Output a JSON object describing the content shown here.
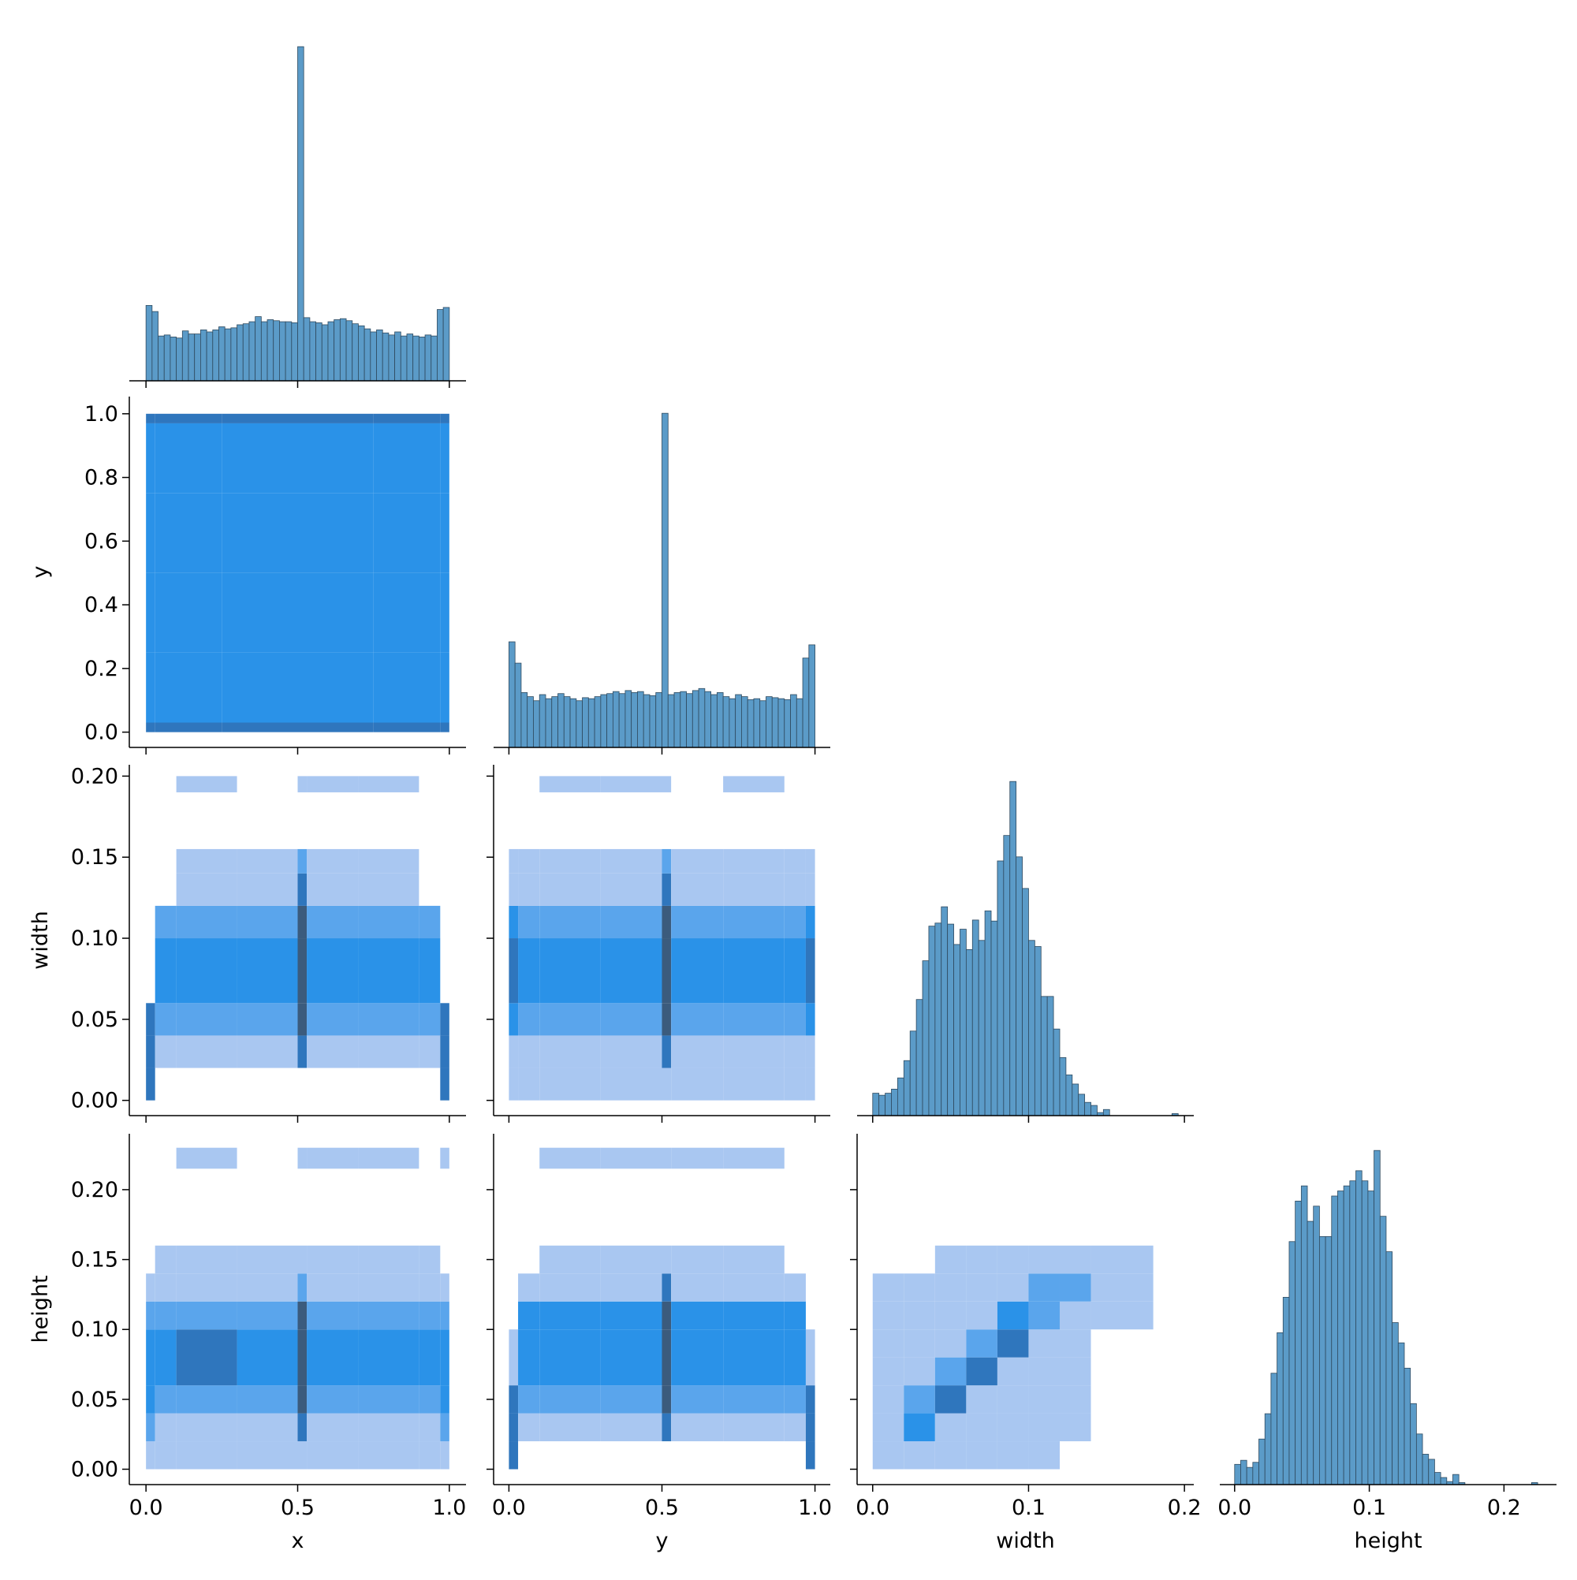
{
  "chart_data": {
    "type": "pairplot",
    "hist_color": "#5b9bc8",
    "edge_color": "#2f4a5f",
    "colors": [
      "none",
      "#a9c7f1",
      "#5aa5ec",
      "#2a92e8",
      "#2f76bd",
      "#3b5b7d"
    ],
    "variables": [
      {
        "name": "x",
        "xlim": [
          -0.055,
          1.055
        ],
        "xticks": [
          {
            "value": 0,
            "label": "0.0"
          },
          0.5,
          {
            "value": 1,
            "label": "1.0"
          }
        ]
      },
      {
        "name": "y",
        "xlim": [
          -0.05,
          1.05
        ],
        "xticks": [
          {
            "value": 0,
            "label": "0.0"
          },
          0.5,
          {
            "value": 1,
            "label": "1.0"
          }
        ],
        "ylim": [
          -0.048,
          1.054
        ],
        "yticks": [
          {
            "value": 0,
            "label": "0.0"
          },
          0.2,
          0.4,
          0.6,
          0.8,
          {
            "value": 1,
            "label": "1.0"
          }
        ]
      },
      {
        "name": "width",
        "xlim": [
          -0.01,
          0.206
        ],
        "xticks": [
          {
            "value": 0,
            "label": "0.0"
          },
          0.1,
          0.2
        ],
        "ylim": [
          -0.0094,
          0.207
        ],
        "yticks": [
          {
            "value": 0,
            "label": "0.00"
          },
          0.05,
          {
            "value": 0.1,
            "label": "0.10"
          },
          0.15,
          {
            "value": 0.2,
            "label": "0.20"
          }
        ]
      },
      {
        "name": "height",
        "xlim": [
          -0.011,
          0.239
        ],
        "xticks": [
          {
            "value": 0,
            "label": "0.0"
          },
          0.1,
          0.2
        ],
        "ylim": [
          -0.011,
          0.24
        ],
        "yticks": [
          {
            "value": 0,
            "label": "0.00"
          },
          0.05,
          {
            "value": 0.1,
            "label": "0.10"
          },
          0.15,
          {
            "value": 0.2,
            "label": "0.20"
          }
        ]
      }
    ],
    "diagonal": [
      {
        "bins": [
          0,
          0.02,
          0.04,
          0.06,
          0.08,
          0.1,
          0.12,
          0.14,
          0.16,
          0.18,
          0.2,
          0.22,
          0.24,
          0.26,
          0.28,
          0.3,
          0.32,
          0.34,
          0.36,
          0.38,
          0.4,
          0.42,
          0.44,
          0.46,
          0.48,
          0.5,
          0.52,
          0.54,
          0.56,
          0.58,
          0.6,
          0.62,
          0.64,
          0.66,
          0.68,
          0.7,
          0.72,
          0.74,
          0.76,
          0.78,
          0.8,
          0.82,
          0.84,
          0.86,
          0.88,
          0.9,
          0.92,
          0.94,
          0.96,
          0.98,
          1
        ],
        "counts": [
          74,
          68,
          44,
          45,
          43,
          42,
          49,
          46,
          46,
          50,
          48,
          50,
          53,
          51,
          52,
          55,
          56,
          58,
          63,
          58,
          60,
          59,
          58,
          58,
          57,
          328,
          62,
          58,
          57,
          55,
          58,
          60,
          61,
          59,
          56,
          54,
          51,
          48,
          50,
          47,
          45,
          48,
          44,
          46,
          44,
          43,
          45,
          44,
          70,
          72
        ]
      },
      {
        "bins": [
          0,
          0.02,
          0.04,
          0.06,
          0.08,
          0.1,
          0.12,
          0.14,
          0.16,
          0.18,
          0.2,
          0.22,
          0.24,
          0.26,
          0.28,
          0.3,
          0.32,
          0.34,
          0.36,
          0.38,
          0.4,
          0.42,
          0.44,
          0.46,
          0.48,
          0.5,
          0.52,
          0.54,
          0.56,
          0.58,
          0.6,
          0.62,
          0.64,
          0.66,
          0.68,
          0.7,
          0.72,
          0.74,
          0.76,
          0.78,
          0.8,
          0.82,
          0.84,
          0.86,
          0.88,
          0.9,
          0.92,
          0.94,
          0.96,
          0.98,
          1
        ],
        "counts": [
          104,
          83,
          54,
          50,
          46,
          52,
          48,
          50,
          53,
          50,
          48,
          46,
          49,
          48,
          50,
          52,
          53,
          55,
          53,
          56,
          54,
          55,
          52,
          51,
          54,
          329,
          52,
          54,
          55,
          53,
          56,
          58,
          55,
          52,
          54,
          50,
          48,
          52,
          50,
          47,
          48,
          46,
          50,
          49,
          48,
          47,
          52,
          48,
          88,
          101
        ]
      },
      {
        "bins": [
          0,
          0.004,
          0.008,
          0.012,
          0.016,
          0.02,
          0.024,
          0.028,
          0.032,
          0.036,
          0.04,
          0.044,
          0.048,
          0.052,
          0.056,
          0.06,
          0.064,
          0.068,
          0.072,
          0.076,
          0.08,
          0.084,
          0.088,
          0.092,
          0.096,
          0.1,
          0.104,
          0.108,
          0.112,
          0.116,
          0.12,
          0.124,
          0.128,
          0.132,
          0.136,
          0.14,
          0.144,
          0.148,
          0.152,
          0.156,
          0.16,
          0.164,
          0.168,
          0.172,
          0.176,
          0.18,
          0.184,
          0.188,
          0.192,
          0.196,
          0.2
        ],
        "counts": [
          22,
          20,
          22,
          26,
          37,
          54,
          83,
          114,
          152,
          186,
          189,
          205,
          188,
          168,
          183,
          163,
          192,
          172,
          201,
          191,
          250,
          275,
          328,
          254,
          223,
          172,
          166,
          117,
          117,
          85,
          57,
          40,
          31,
          21,
          13,
          10,
          3,
          6,
          0,
          0,
          0,
          0,
          0,
          0,
          0,
          0,
          0,
          0,
          2,
          0
        ]
      },
      {
        "bins": [
          0,
          0.0045,
          0.009,
          0.0135,
          0.018,
          0.0225,
          0.027,
          0.0315,
          0.036,
          0.0405,
          0.045,
          0.0495,
          0.054,
          0.0585,
          0.063,
          0.0675,
          0.072,
          0.0765,
          0.081,
          0.0855,
          0.09,
          0.0945,
          0.099,
          0.1035,
          0.108,
          0.1125,
          0.117,
          0.1215,
          0.126,
          0.1305,
          0.135,
          0.1395,
          0.144,
          0.1485,
          0.153,
          0.1575,
          0.162,
          0.1665,
          0.171,
          0.1755,
          0.18,
          0.1845,
          0.189,
          0.1935,
          0.198,
          0.2025,
          0.207,
          0.2115,
          0.216,
          0.2205,
          0.225
        ],
        "counts": [
          20,
          24,
          17,
          22,
          45,
          70,
          110,
          150,
          185,
          240,
          280,
          295,
          260,
          275,
          245,
          245,
          285,
          290,
          295,
          300,
          310,
          300,
          290,
          330,
          265,
          230,
          160,
          140,
          115,
          80,
          50,
          30,
          25,
          12,
          7,
          3,
          10,
          2,
          0,
          0,
          0,
          0,
          0,
          0,
          0,
          0,
          0,
          0,
          0,
          2
        ]
      }
    ],
    "pairs": [
      {
        "x": 0,
        "y": 1,
        "xbins": [
          0,
          0.03,
          0.25,
          0.5,
          0.75,
          0.97,
          1
        ],
        "ybins": [
          0,
          0.03,
          0.25,
          0.5,
          0.75,
          0.97,
          1
        ],
        "counts": [
          [
            4,
            4,
            4,
            4,
            4,
            4
          ],
          [
            3,
            3,
            3,
            3,
            3,
            3
          ],
          [
            3,
            3,
            3,
            3,
            3,
            3
          ],
          [
            3,
            3,
            3,
            3,
            3,
            3
          ],
          [
            3,
            3,
            3,
            3,
            3,
            3
          ],
          [
            4,
            4,
            4,
            4,
            4,
            4
          ]
        ]
      },
      {
        "x": 0,
        "y": 2,
        "xbins": [
          0,
          0.03,
          0.1,
          0.3,
          0.5,
          0.53,
          0.7,
          0.9,
          0.97,
          1
        ],
        "ybins": [
          0,
          0.02,
          0.04,
          0.06,
          0.1,
          0.12,
          0.14,
          0.155,
          0.19,
          0.2
        ],
        "counts": [
          [
            4,
            0,
            0,
            0,
            0,
            0,
            0,
            0,
            4
          ],
          [
            4,
            1,
            1,
            1,
            4,
            1,
            1,
            1,
            4
          ],
          [
            4,
            2,
            2,
            2,
            5,
            2,
            2,
            2,
            4
          ],
          [
            0,
            3,
            3,
            3,
            5,
            3,
            3,
            3,
            0
          ],
          [
            0,
            2,
            2,
            2,
            5,
            2,
            2,
            2,
            0
          ],
          [
            0,
            0,
            1,
            1,
            4,
            1,
            1,
            0,
            0
          ],
          [
            0,
            0,
            1,
            1,
            2,
            1,
            1,
            0,
            0
          ],
          [
            0,
            0,
            0,
            0,
            0,
            0,
            0,
            0,
            0
          ],
          [
            0,
            0,
            1,
            0,
            1,
            1,
            1,
            0,
            0
          ]
        ]
      },
      {
        "x": 1,
        "y": 2,
        "xbins": [
          0,
          0.03,
          0.1,
          0.3,
          0.5,
          0.53,
          0.7,
          0.9,
          0.97,
          1
        ],
        "ybins": [
          0,
          0.02,
          0.04,
          0.06,
          0.1,
          0.12,
          0.14,
          0.155,
          0.19,
          0.2
        ],
        "counts": [
          [
            1,
            1,
            1,
            1,
            1,
            1,
            1,
            1,
            1
          ],
          [
            1,
            1,
            1,
            1,
            4,
            1,
            1,
            1,
            1
          ],
          [
            3,
            2,
            2,
            2,
            5,
            2,
            2,
            2,
            3
          ],
          [
            4,
            3,
            3,
            3,
            5,
            3,
            3,
            3,
            4
          ],
          [
            3,
            2,
            2,
            2,
            5,
            2,
            2,
            2,
            3
          ],
          [
            1,
            1,
            1,
            1,
            4,
            1,
            1,
            1,
            1
          ],
          [
            1,
            1,
            1,
            1,
            2,
            1,
            1,
            1,
            1
          ],
          [
            0,
            0,
            0,
            0,
            0,
            0,
            0,
            0,
            0
          ],
          [
            0,
            0,
            1,
            1,
            1,
            0,
            1,
            0,
            0
          ]
        ]
      },
      {
        "x": 0,
        "y": 3,
        "xbins": [
          0,
          0.03,
          0.1,
          0.3,
          0.5,
          0.53,
          0.7,
          0.9,
          0.97,
          1
        ],
        "ybins": [
          0,
          0.02,
          0.04,
          0.06,
          0.1,
          0.12,
          0.14,
          0.16,
          0.215,
          0.23
        ],
        "counts": [
          [
            1,
            1,
            1,
            1,
            1,
            1,
            1,
            1,
            1
          ],
          [
            2,
            1,
            1,
            1,
            4,
            1,
            1,
            1,
            2
          ],
          [
            3,
            2,
            2,
            2,
            5,
            2,
            2,
            2,
            3
          ],
          [
            3,
            3,
            4,
            3,
            5,
            3,
            3,
            3,
            3
          ],
          [
            2,
            2,
            2,
            2,
            5,
            2,
            2,
            2,
            2
          ],
          [
            1,
            1,
            1,
            1,
            2,
            1,
            1,
            1,
            1
          ],
          [
            0,
            1,
            1,
            1,
            1,
            1,
            1,
            1,
            0
          ],
          [
            0,
            0,
            0,
            0,
            0,
            0,
            0,
            0,
            0
          ],
          [
            0,
            0,
            1,
            0,
            1,
            1,
            1,
            0,
            1
          ]
        ]
      },
      {
        "x": 1,
        "y": 3,
        "xbins": [
          0,
          0.03,
          0.1,
          0.3,
          0.5,
          0.53,
          0.7,
          0.9,
          0.97,
          1
        ],
        "ybins": [
          0,
          0.02,
          0.04,
          0.06,
          0.1,
          0.12,
          0.14,
          0.16,
          0.215,
          0.23
        ],
        "counts": [
          [
            4,
            0,
            0,
            0,
            0,
            0,
            0,
            0,
            4
          ],
          [
            4,
            1,
            1,
            1,
            4,
            1,
            1,
            1,
            4
          ],
          [
            4,
            2,
            2,
            2,
            5,
            2,
            2,
            2,
            4
          ],
          [
            1,
            3,
            3,
            3,
            5,
            3,
            3,
            3,
            1
          ],
          [
            0,
            3,
            3,
            3,
            5,
            3,
            3,
            3,
            0
          ],
          [
            0,
            1,
            1,
            1,
            4,
            1,
            1,
            1,
            0
          ],
          [
            0,
            0,
            1,
            1,
            1,
            1,
            1,
            0,
            0
          ],
          [
            0,
            0,
            0,
            0,
            0,
            0,
            0,
            0,
            0
          ],
          [
            0,
            0,
            1,
            1,
            1,
            1,
            1,
            0,
            0
          ]
        ]
      },
      {
        "x": 2,
        "y": 3,
        "xbins": [
          0,
          0.02,
          0.04,
          0.06,
          0.08,
          0.1,
          0.12,
          0.14,
          0.18
        ],
        "ybins": [
          0,
          0.02,
          0.04,
          0.06,
          0.08,
          0.1,
          0.12,
          0.14,
          0.16
        ],
        "counts": [
          [
            1,
            1,
            1,
            1,
            1,
            1,
            0,
            0
          ],
          [
            1,
            3,
            1,
            1,
            1,
            1,
            1,
            0
          ],
          [
            1,
            2,
            4,
            1,
            1,
            1,
            1,
            0
          ],
          [
            1,
            1,
            2,
            4,
            1,
            1,
            1,
            0
          ],
          [
            1,
            1,
            1,
            2,
            4,
            1,
            1,
            0
          ],
          [
            1,
            1,
            1,
            1,
            3,
            2,
            1,
            1
          ],
          [
            1,
            1,
            1,
            1,
            1,
            2,
            2,
            1
          ],
          [
            0,
            0,
            1,
            1,
            1,
            1,
            1,
            1
          ]
        ]
      }
    ]
  }
}
